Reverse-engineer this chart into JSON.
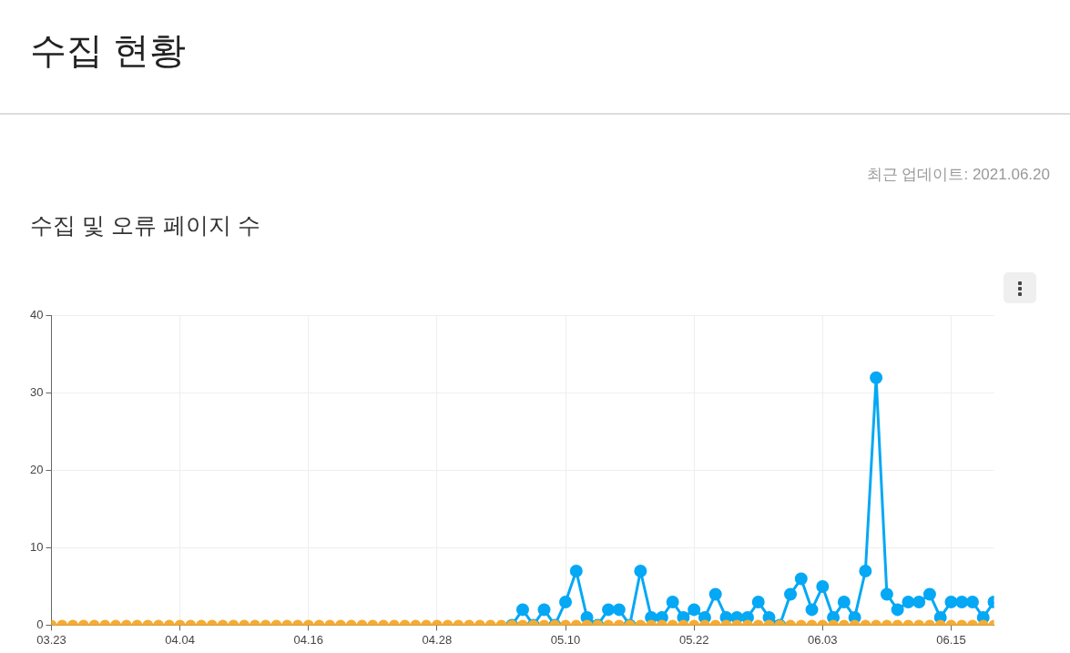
{
  "chart_data": {
    "type": "line",
    "title": "수집 현황",
    "subtitle": "수집 및 오류 페이지 수",
    "annotations": [
      "최근 업데이트: 2021.06.20"
    ],
    "x": [
      "--03-23",
      "--03-24",
      "--03-25",
      "--03-26",
      "--03-27",
      "--03-28",
      "--03-29",
      "--03-30",
      "--03-31",
      "--04-01",
      "--04-02",
      "--04-03",
      "--04-04",
      "--04-05",
      "--04-06",
      "--04-07",
      "--04-08",
      "--04-09",
      "--04-10",
      "--04-11",
      "--04-12",
      "--04-13",
      "--04-14",
      "--04-15",
      "--04-16",
      "--04-17",
      "--04-18",
      "--04-19",
      "--04-20",
      "--04-21",
      "--04-22",
      "--04-23",
      "--04-24",
      "--04-25",
      "--04-26",
      "--04-27",
      "--04-28",
      "--04-29",
      "--04-30",
      "--05-01",
      "--05-02",
      "--05-03",
      "--05-04",
      "--05-05",
      "--05-06",
      "--05-07",
      "--05-08",
      "--05-09",
      "--05-10",
      "--05-11",
      "--05-12",
      "--05-13",
      "--05-14",
      "--05-15",
      "--05-16",
      "--05-17",
      "--05-18",
      "--05-19",
      "--05-20",
      "--05-21",
      "--05-22",
      "--05-23",
      "--05-24",
      "--05-25",
      "--05-26",
      "--05-27",
      "--05-28",
      "--05-29",
      "--05-30",
      "--05-31",
      "--06-01",
      "--06-02",
      "--06-03",
      "--06-04",
      "--06-05",
      "--06-06",
      "--06-07",
      "--06-08",
      "--06-09",
      "--06-10",
      "--06-11",
      "--06-12",
      "--06-13",
      "--06-14",
      "--06-15",
      "--06-16",
      "--06-17",
      "--06-18",
      "--06-19"
    ],
    "series": [
      {
        "color": "#f5ac32",
        "values": [
          0,
          0,
          0,
          0,
          0,
          0,
          0,
          0,
          0,
          0,
          0,
          0,
          0,
          0,
          0,
          0,
          0,
          0,
          0,
          0,
          0,
          0,
          0,
          0,
          0,
          0,
          0,
          0,
          0,
          0,
          0,
          0,
          0,
          0,
          0,
          0,
          0,
          0,
          0,
          0,
          0,
          0,
          0,
          0,
          0,
          0,
          0,
          0,
          0,
          0,
          0,
          0,
          0,
          0,
          0,
          0,
          0,
          0,
          0,
          0,
          0,
          0,
          0,
          0,
          0,
          0,
          0,
          0,
          0,
          0,
          0,
          0,
          0,
          0,
          0,
          0,
          0,
          0,
          0,
          0,
          0,
          0,
          0,
          0,
          0,
          0,
          0,
          0,
          0
        ]
      },
      {
        "color": "#05a8f5",
        "values": [
          null,
          null,
          null,
          null,
          null,
          null,
          null,
          null,
          null,
          null,
          null,
          null,
          null,
          null,
          null,
          null,
          null,
          null,
          null,
          null,
          null,
          null,
          null,
          null,
          null,
          null,
          null,
          null,
          null,
          null,
          null,
          null,
          null,
          null,
          null,
          null,
          null,
          null,
          null,
          null,
          null,
          null,
          null,
          0,
          2,
          0,
          2,
          0,
          3,
          7,
          1,
          0,
          2,
          2,
          0,
          7,
          1,
          1,
          3,
          1,
          2,
          1,
          4,
          1,
          1,
          1,
          3,
          1,
          0,
          4,
          6,
          2,
          5,
          1,
          3,
          1,
          7,
          32,
          4,
          2,
          3,
          3,
          4,
          1,
          3,
          3,
          3,
          1,
          3
        ]
      }
    ],
    "xlim": [
      "--03-23",
      "--06-19"
    ],
    "xticks": [
      {
        "value": "--03-23",
        "label": "03.23"
      },
      {
        "value": "--04-04",
        "label": "04.04"
      },
      {
        "value": "--04-16",
        "label": "04.16"
      },
      {
        "value": "--04-28",
        "label": "04.28"
      },
      {
        "value": "--05-10",
        "label": "05.10"
      },
      {
        "value": "--05-22",
        "label": "05.22"
      },
      {
        "value": "--06-03",
        "label": "06.03"
      },
      {
        "value": "--06-15",
        "label": "06.15"
      }
    ],
    "ylim": [
      0,
      40
    ],
    "yticks": [
      0,
      10,
      20,
      30,
      40
    ],
    "grid": true,
    "marker": "circle",
    "line_style": "solid"
  }
}
